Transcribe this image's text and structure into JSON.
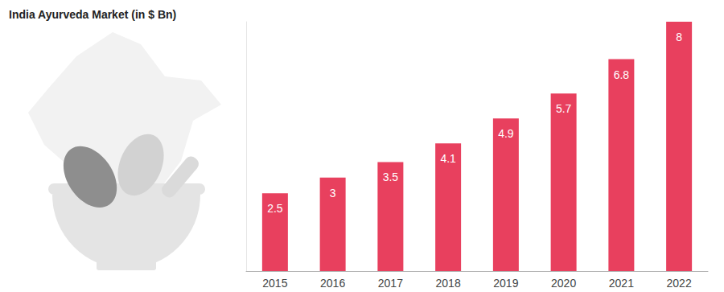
{
  "chart_data": {
    "type": "bar",
    "title": "India Ayurveda Market (in $ Bn)",
    "categories": [
      "2015",
      "2016",
      "2017",
      "2018",
      "2019",
      "2020",
      "2021",
      "2022"
    ],
    "values": [
      2.5,
      3,
      3.5,
      4.1,
      4.9,
      5.7,
      6.8,
      8
    ],
    "color": "#e8405e",
    "ylim": [
      0,
      8
    ],
    "grid": false,
    "data_labels": true,
    "tick_labels": "x"
  }
}
